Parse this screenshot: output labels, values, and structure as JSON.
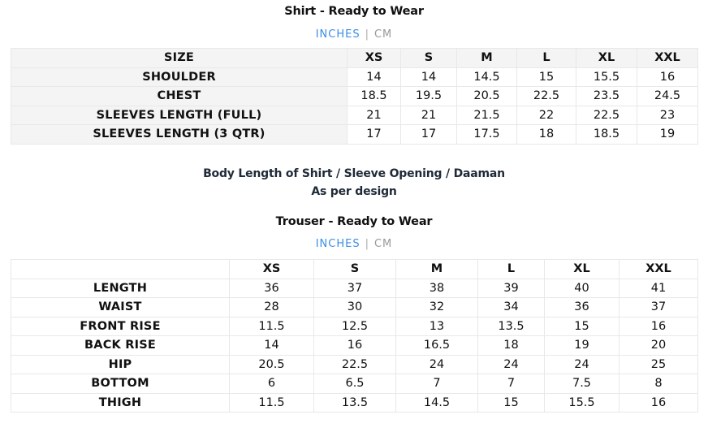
{
  "shirt": {
    "title": "Shirt - Ready to Wear",
    "units": {
      "active": "INCHES",
      "separator": "|",
      "inactive": "CM"
    },
    "header": [
      "SIZE",
      "XS",
      "S",
      "M",
      "L",
      "XL",
      "XXL"
    ],
    "rows": [
      {
        "label": "SHOULDER",
        "values": [
          "14",
          "14",
          "14.5",
          "15",
          "15.5",
          "16"
        ]
      },
      {
        "label": "CHEST",
        "values": [
          "18.5",
          "19.5",
          "20.5",
          "22.5",
          "23.5",
          "24.5"
        ]
      },
      {
        "label": "SLEEVES LENGTH (FULL)",
        "values": [
          "21",
          "21",
          "21.5",
          "22",
          "22.5",
          "23"
        ]
      },
      {
        "label": "SLEEVES LENGTH (3 QTR)",
        "values": [
          "17",
          "17",
          "17.5",
          "18",
          "18.5",
          "19"
        ]
      }
    ]
  },
  "note": {
    "line1": "Body Length of Shirt / Sleeve Opening / Daaman",
    "line2": "As per design"
  },
  "trouser": {
    "title": "Trouser - Ready to Wear",
    "units": {
      "active": "INCHES",
      "separator": "|",
      "inactive": "CM"
    },
    "header": [
      "",
      "XS",
      "S",
      "M",
      "L",
      "XL",
      "XXL"
    ],
    "rows": [
      {
        "label": "LENGTH",
        "values": [
          "36",
          "37",
          "38",
          "39",
          "40",
          "41"
        ]
      },
      {
        "label": "WAIST",
        "values": [
          "28",
          "30",
          "32",
          "34",
          "36",
          "37"
        ]
      },
      {
        "label": "FRONT RISE",
        "values": [
          "11.5",
          "12.5",
          "13",
          "13.5",
          "15",
          "16"
        ]
      },
      {
        "label": "BACK RISE",
        "values": [
          "14",
          "16",
          "16.5",
          "18",
          "19",
          "20"
        ]
      },
      {
        "label": "HIP",
        "values": [
          "20.5",
          "22.5",
          "24",
          "24",
          "24",
          "25"
        ]
      },
      {
        "label": "BOTTOM",
        "values": [
          "6",
          "6.5",
          "7",
          "7",
          "7.5",
          "8"
        ]
      },
      {
        "label": "THIGH",
        "values": [
          "11.5",
          "13.5",
          "14.5",
          "15",
          "15.5",
          "16"
        ]
      }
    ]
  },
  "colors": {
    "accent": "#3a8ee6",
    "inactive": "#999999",
    "header_bg": "#f4f4f4",
    "border": "#e8e8e8"
  }
}
